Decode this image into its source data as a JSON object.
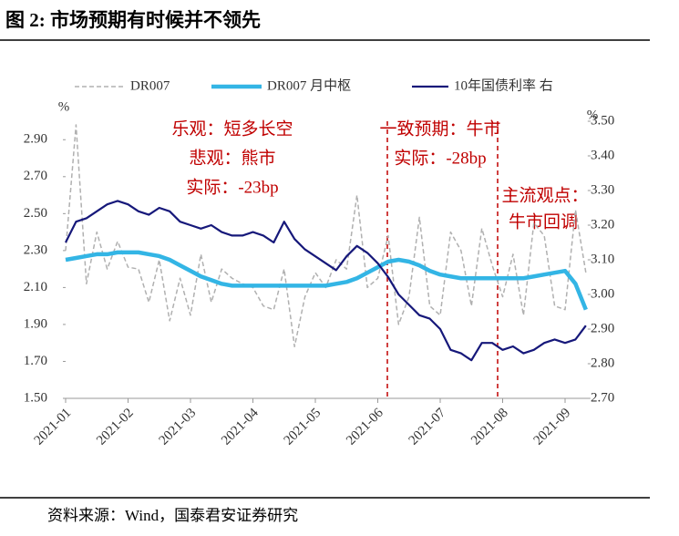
{
  "chart_data": {
    "type": "line",
    "title": "图 2:  市场预期有时候并不领先",
    "source": "资料来源：Wind，国泰君安证券研究",
    "y_label": "%",
    "y2_label": "%",
    "categories": [
      "2021-01",
      null,
      null,
      null,
      null,
      null,
      "2021-02",
      null,
      null,
      null,
      null,
      null,
      "2021-03",
      null,
      null,
      null,
      null,
      null,
      "2021-04",
      null,
      null,
      null,
      null,
      null,
      "2021-05",
      null,
      null,
      null,
      null,
      null,
      "2021-06",
      null,
      null,
      null,
      null,
      null,
      "2021-07",
      null,
      null,
      null,
      null,
      null,
      "2021-08",
      null,
      null,
      null,
      null,
      null,
      "2021-09",
      null,
      null
    ],
    "ylim": [
      1.5,
      3.0
    ],
    "yticks": [
      {
        "value": 1.5,
        "label": "1.50"
      },
      {
        "value": 1.7,
        "label": "1.70"
      },
      {
        "value": 1.9,
        "label": "1.90"
      },
      {
        "value": 2.1,
        "label": "2.10"
      },
      {
        "value": 2.3,
        "label": "2.30"
      },
      {
        "value": 2.5,
        "label": "2.50"
      },
      {
        "value": 2.7,
        "label": "2.70"
      },
      {
        "value": 2.9,
        "label": "2.90"
      }
    ],
    "y2lim": [
      2.7,
      3.5
    ],
    "y2ticks": [
      {
        "value": 2.7,
        "label": "2.70"
      },
      {
        "value": 2.8,
        "label": "2.80"
      },
      {
        "value": 2.9,
        "label": "2.90"
      },
      {
        "value": 3.0,
        "label": "3.00"
      },
      {
        "value": 3.1,
        "label": "3.10"
      },
      {
        "value": 3.2,
        "label": "3.20"
      },
      {
        "value": 3.3,
        "label": "3.30"
      },
      {
        "value": 3.4,
        "label": "3.40"
      },
      {
        "value": 3.5,
        "label": "3.50"
      }
    ],
    "legend": "top",
    "series": [
      {
        "name": "DR007",
        "color": "#b0b0b0",
        "style": "dashed",
        "values": [
          2.3,
          2.98,
          2.12,
          2.4,
          2.2,
          2.35,
          2.21,
          2.2,
          2.02,
          2.25,
          1.92,
          2.15,
          1.95,
          2.28,
          2.02,
          2.2,
          2.15,
          2.12,
          2.1,
          2.0,
          1.98,
          2.2,
          1.78,
          2.05,
          2.18,
          2.1,
          2.25,
          2.2,
          2.6,
          2.1,
          2.15,
          2.38,
          1.9,
          2.05,
          2.48,
          2.0,
          1.95,
          2.4,
          2.3,
          2.0,
          2.42,
          2.22,
          2.05,
          2.28,
          1.95,
          2.45,
          2.38,
          2.0,
          1.98,
          2.52,
          2.18
        ]
      },
      {
        "name": "DR007 月中枢",
        "color": "#33b5e5",
        "style": "thick",
        "values": [
          2.25,
          2.26,
          2.27,
          2.28,
          2.28,
          2.29,
          2.29,
          2.29,
          2.28,
          2.27,
          2.25,
          2.22,
          2.19,
          2.16,
          2.14,
          2.12,
          2.11,
          2.11,
          2.11,
          2.11,
          2.11,
          2.11,
          2.11,
          2.11,
          2.11,
          2.11,
          2.12,
          2.13,
          2.15,
          2.18,
          2.21,
          2.24,
          2.25,
          2.24,
          2.22,
          2.19,
          2.17,
          2.16,
          2.15,
          2.15,
          2.15,
          2.15,
          2.15,
          2.15,
          2.15,
          2.16,
          2.17,
          2.18,
          2.19,
          2.12,
          1.98
        ]
      },
      {
        "name": "10年国债利率 右",
        "color": "#16187a",
        "style": "solid",
        "axis": "y2",
        "values": [
          3.15,
          3.21,
          3.22,
          3.24,
          3.26,
          3.27,
          3.26,
          3.24,
          3.23,
          3.25,
          3.24,
          3.21,
          3.2,
          3.19,
          3.2,
          3.18,
          3.17,
          3.17,
          3.18,
          3.17,
          3.15,
          3.21,
          3.16,
          3.13,
          3.11,
          3.09,
          3.07,
          3.11,
          3.14,
          3.12,
          3.09,
          3.05,
          3.0,
          2.97,
          2.94,
          2.93,
          2.9,
          2.84,
          2.83,
          2.81,
          2.86,
          2.86,
          2.84,
          2.85,
          2.83,
          2.84,
          2.86,
          2.87,
          2.86,
          2.87,
          2.91
        ]
      }
    ],
    "annotations": [
      "乐观：短多长空",
      "悲观：熊市",
      "实际：-23bp",
      "一致预期：牛市",
      "实际：-28bp",
      "主流观点：",
      "牛市回调"
    ]
  }
}
